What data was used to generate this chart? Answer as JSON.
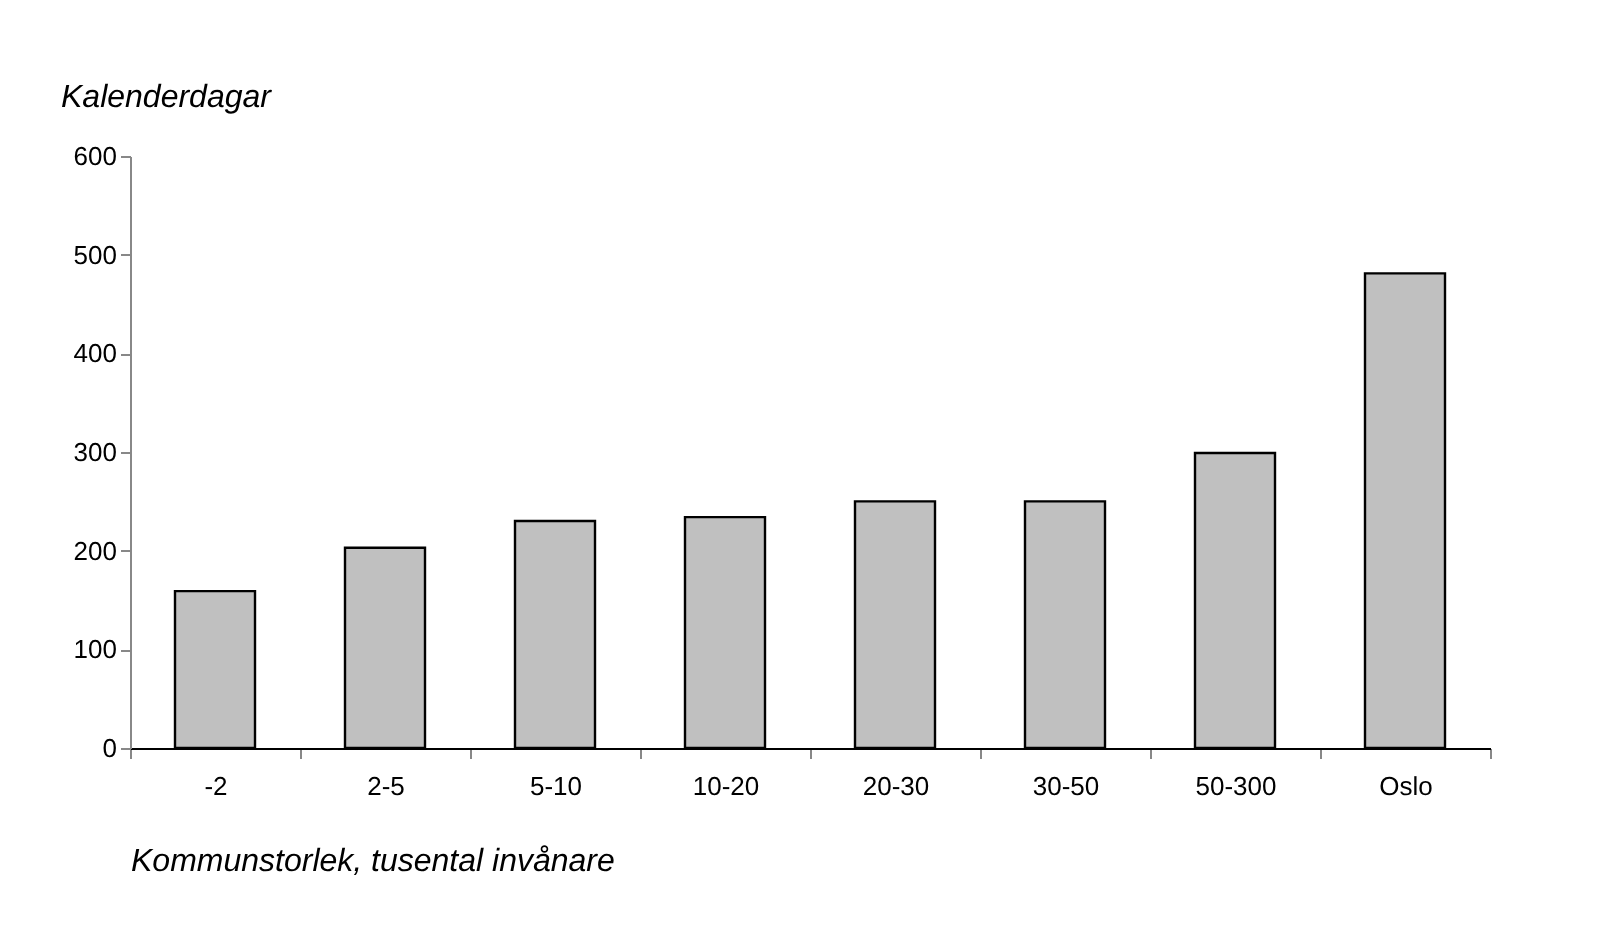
{
  "chart_data": {
    "type": "bar",
    "ylabel": "Kalenderdagar",
    "xlabel": "Kommunstorlek, tusental invånare",
    "categories": [
      "-2",
      "2-5",
      "5-10",
      "10-20",
      "20-30",
      "30-50",
      "50-300",
      "Oslo"
    ],
    "values": [
      159,
      203,
      230,
      234,
      250,
      250,
      299,
      481
    ],
    "color": "#c0c0c0",
    "ylim": [
      0,
      600
    ],
    "yticks": [
      0,
      100,
      200,
      300,
      400,
      500,
      600
    ],
    "grid": false
  }
}
